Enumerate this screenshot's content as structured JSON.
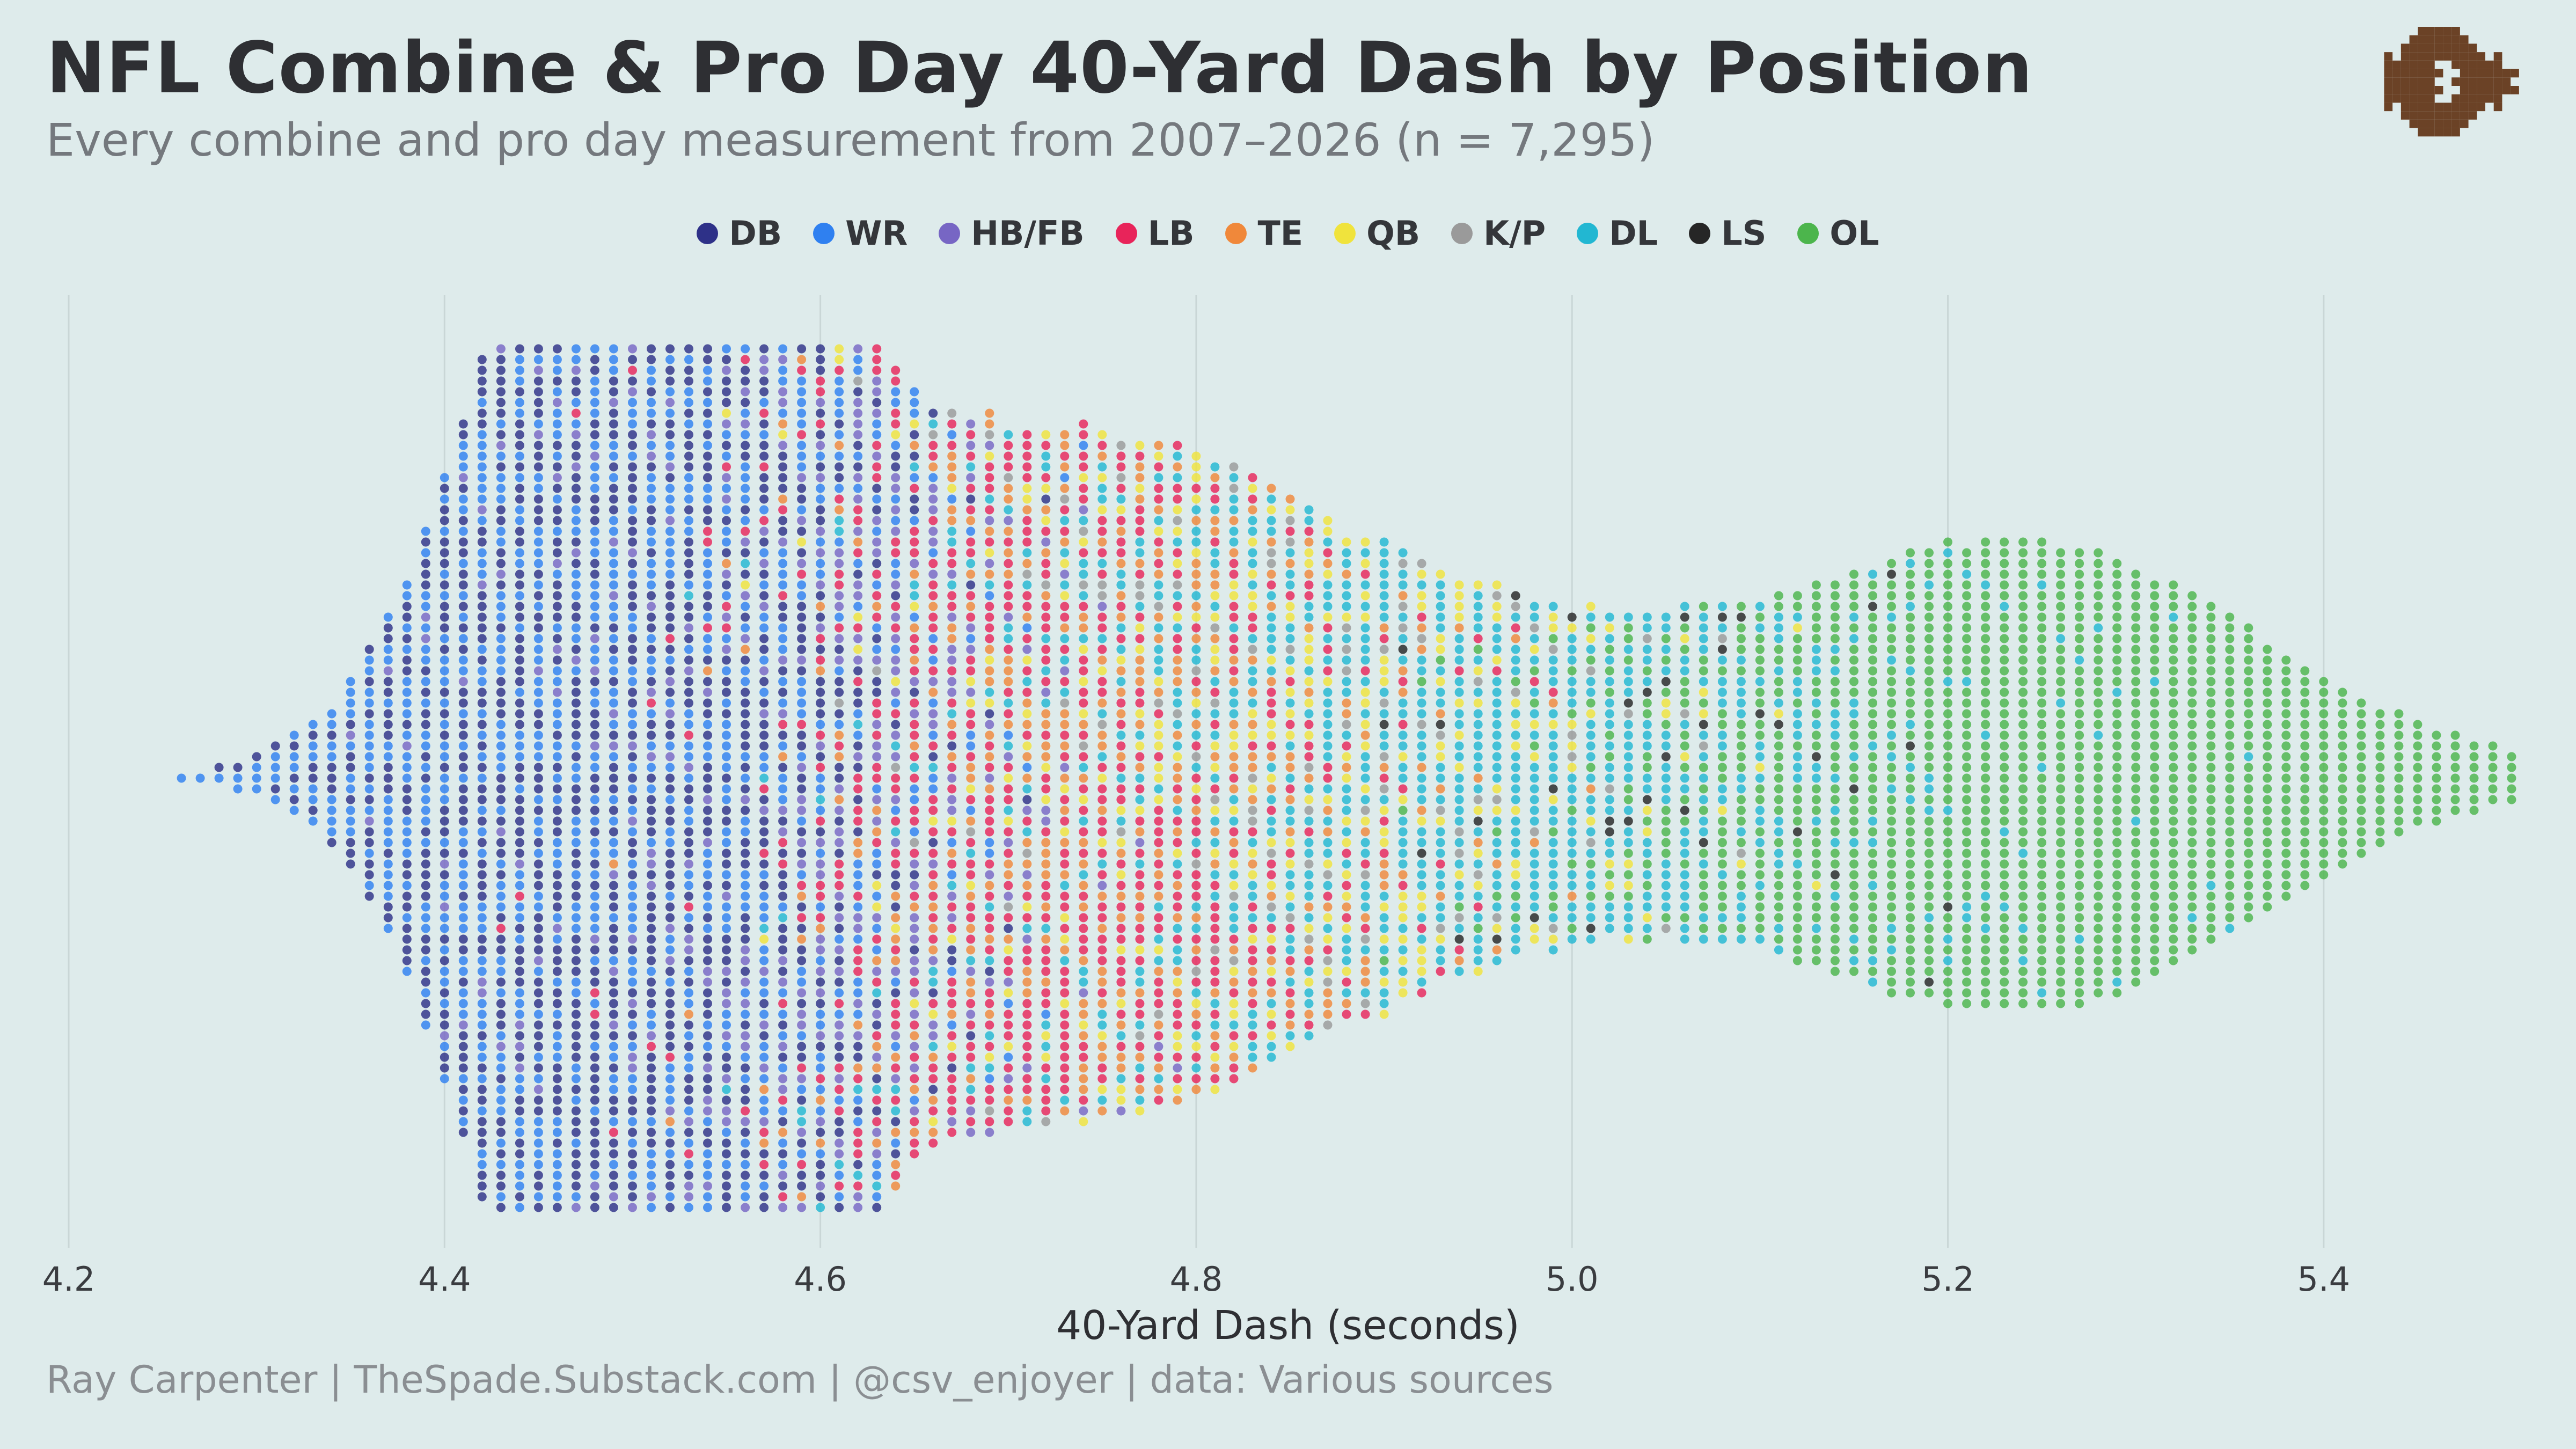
{
  "header": {
    "title": "NFL Combine & Pro Day 40-Yard Dash by Position",
    "subtitle": "Every combine and pro day measurement from 2007–2026 (n = 7,295)"
  },
  "legend": [
    {
      "label": "DB",
      "color": "#2e3188"
    },
    {
      "label": "WR",
      "color": "#2f80f0"
    },
    {
      "label": "HB/FB",
      "color": "#7766c4"
    },
    {
      "label": "LB",
      "color": "#e8245a"
    },
    {
      "label": "TE",
      "color": "#f0883a"
    },
    {
      "label": "QB",
      "color": "#f0e33c"
    },
    {
      "label": "K/P",
      "color": "#9a9a9a"
    },
    {
      "label": "DL",
      "color": "#22b7d2"
    },
    {
      "label": "LS",
      "color": "#262626"
    },
    {
      "label": "OL",
      "color": "#4cb54c"
    }
  ],
  "caption": "Ray Carpenter | TheSpade.Substack.com | @csv_enjoyer | data: Various sources",
  "chart_data": {
    "type": "scatter",
    "subtype": "beeswarm",
    "title": "NFL Combine & Pro Day 40-Yard Dash by Position",
    "xlabel": "40-Yard Dash (seconds)",
    "ylabel": "",
    "xlim": [
      4.2,
      5.5
    ],
    "xticks": [
      "4.2",
      "4.4",
      "4.6",
      "4.8",
      "5.0",
      "5.2",
      "5.4"
    ],
    "grid": "vertical",
    "n": 7295,
    "bin_width": 0.01,
    "series": [
      {
        "name": "DB",
        "peak": 4.5,
        "spread": 0.07,
        "count": 1450
      },
      {
        "name": "WR",
        "peak": 4.5,
        "spread": 0.08,
        "count": 1320
      },
      {
        "name": "HB/FB",
        "peak": 4.57,
        "spread": 0.08,
        "count": 560
      },
      {
        "name": "LB",
        "peak": 4.71,
        "spread": 0.1,
        "count": 760
      },
      {
        "name": "TE",
        "peak": 4.75,
        "spread": 0.1,
        "count": 420
      },
      {
        "name": "QB",
        "peak": 4.84,
        "spread": 0.12,
        "count": 360
      },
      {
        "name": "K/P",
        "peak": 4.85,
        "spread": 0.12,
        "count": 130
      },
      {
        "name": "DL",
        "peak": 4.93,
        "spread": 0.16,
        "count": 900
      },
      {
        "name": "LS",
        "peak": 5.05,
        "spread": 0.1,
        "count": 45
      },
      {
        "name": "OL",
        "peak": 5.25,
        "spread": 0.12,
        "count": 1350
      }
    ]
  },
  "logo": {
    "icon": "spade-fish-pixel-logo",
    "color": "#6b4226"
  }
}
